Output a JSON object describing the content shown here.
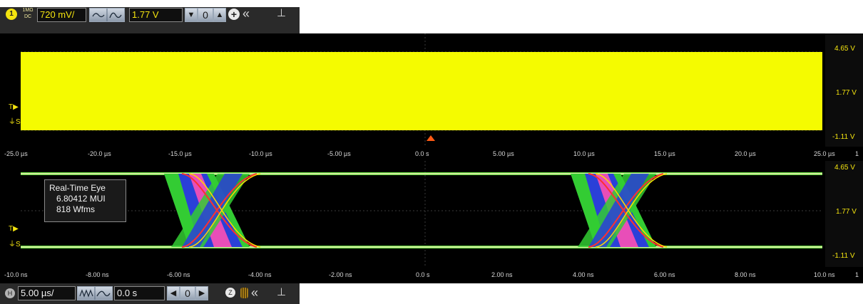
{
  "channel": {
    "number": "1",
    "coupling_top": "1MΩ",
    "coupling_bottom": "DC",
    "vdiv": "720 mV/",
    "offset": "1.77 V",
    "color": "#f4e40f"
  },
  "upper": {
    "v_top": "4.65 V",
    "v_mid": "1.77 V",
    "v_bot": "-1.11 V",
    "time_labels": [
      "-25.0 µs",
      "-20.0 µs",
      "-15.0 µs",
      "-10.0 µs",
      "-5.00 µs",
      "0.0 s",
      "5.00 µs",
      "10.0 µs",
      "15.0 µs",
      "20.0 µs",
      "25.0 µs"
    ],
    "right_tick": "1"
  },
  "lower": {
    "v_top": "4.65 V",
    "v_mid": "1.77 V",
    "v_bot": "-1.11 V",
    "time_labels": [
      "-10.0 ns",
      "-8.00 ns",
      "-6.00 ns",
      "-4.00 ns",
      "-2.00 ns",
      "0.0 s",
      "2.00 ns",
      "4.00 ns",
      "6.00 ns",
      "8.00 ns",
      "10.0 ns"
    ],
    "right_tick": "1",
    "info": {
      "title": "Real-Time Eye",
      "mui": "6.80412 MUI",
      "wfms": "818 Wfms"
    }
  },
  "marker_labels": {
    "trigger": "T",
    "source": "S"
  },
  "timebase": {
    "label": "H",
    "tdiv": "5.00 µs/",
    "delay": "0.0 s",
    "trig_icon_label": "Z"
  },
  "icons": {
    "add": "plus-circle-icon",
    "collapse": "double-chevron-left-icon",
    "pin": "pin-icon",
    "trigger": "trigger-level-icon"
  }
}
